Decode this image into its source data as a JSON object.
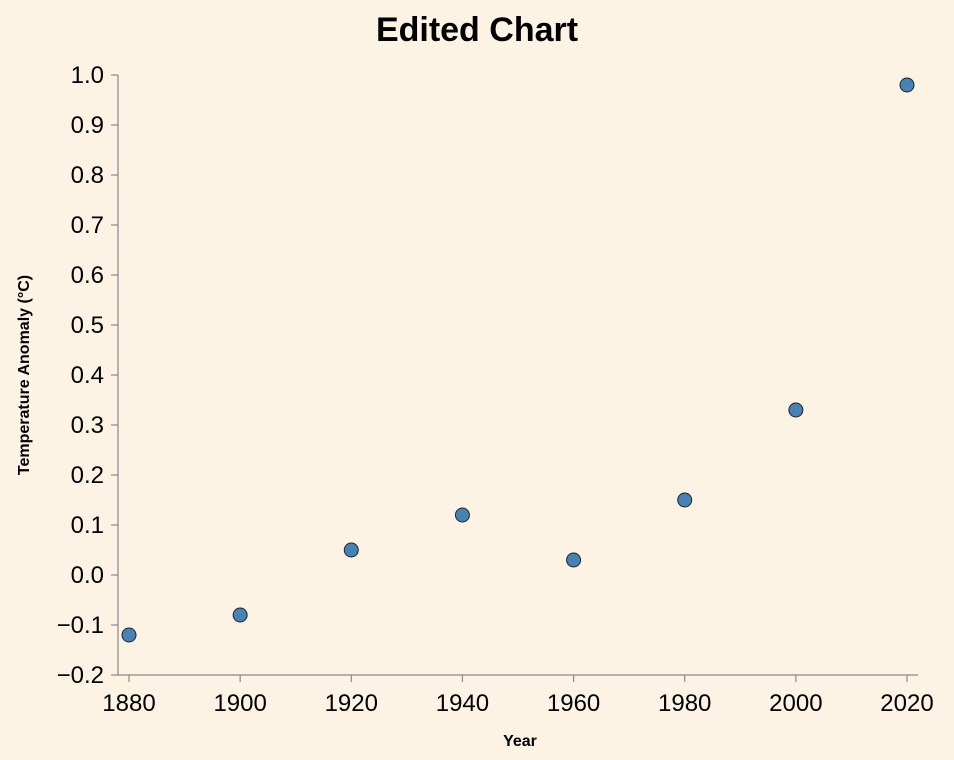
{
  "chart_data": {
    "type": "scatter",
    "title": "Edited Chart",
    "xlabel": "Year",
    "ylabel": "Temperature Anomaly (°C)",
    "xlim": [
      1880,
      2020
    ],
    "ylim": [
      -0.2,
      1.0
    ],
    "x_ticks": [
      1880,
      1900,
      1920,
      1940,
      1960,
      1980,
      2000,
      2020
    ],
    "x_tick_labels": [
      "1880",
      "1900",
      "1920",
      "1940",
      "1960",
      "1980",
      "2000",
      "2020"
    ],
    "y_ticks": [
      -0.2,
      -0.1,
      0.0,
      0.1,
      0.2,
      0.3,
      0.4,
      0.5,
      0.6,
      0.7,
      0.8,
      0.9,
      1.0
    ],
    "y_tick_labels": [
      "−0.2",
      "−0.1",
      "0.0",
      "0.1",
      "0.2",
      "0.3",
      "0.4",
      "0.5",
      "0.6",
      "0.7",
      "0.8",
      "0.9",
      "1.0"
    ],
    "grid": false,
    "background_color": "#fdf3e5",
    "point_color": "#4682b4",
    "points": [
      {
        "x": 1880,
        "y": -0.12
      },
      {
        "x": 1900,
        "y": -0.08
      },
      {
        "x": 1920,
        "y": 0.05
      },
      {
        "x": 1940,
        "y": 0.12
      },
      {
        "x": 1960,
        "y": 0.03
      },
      {
        "x": 1980,
        "y": 0.15
      },
      {
        "x": 2000,
        "y": 0.33
      },
      {
        "x": 2020,
        "y": 0.98
      }
    ]
  }
}
